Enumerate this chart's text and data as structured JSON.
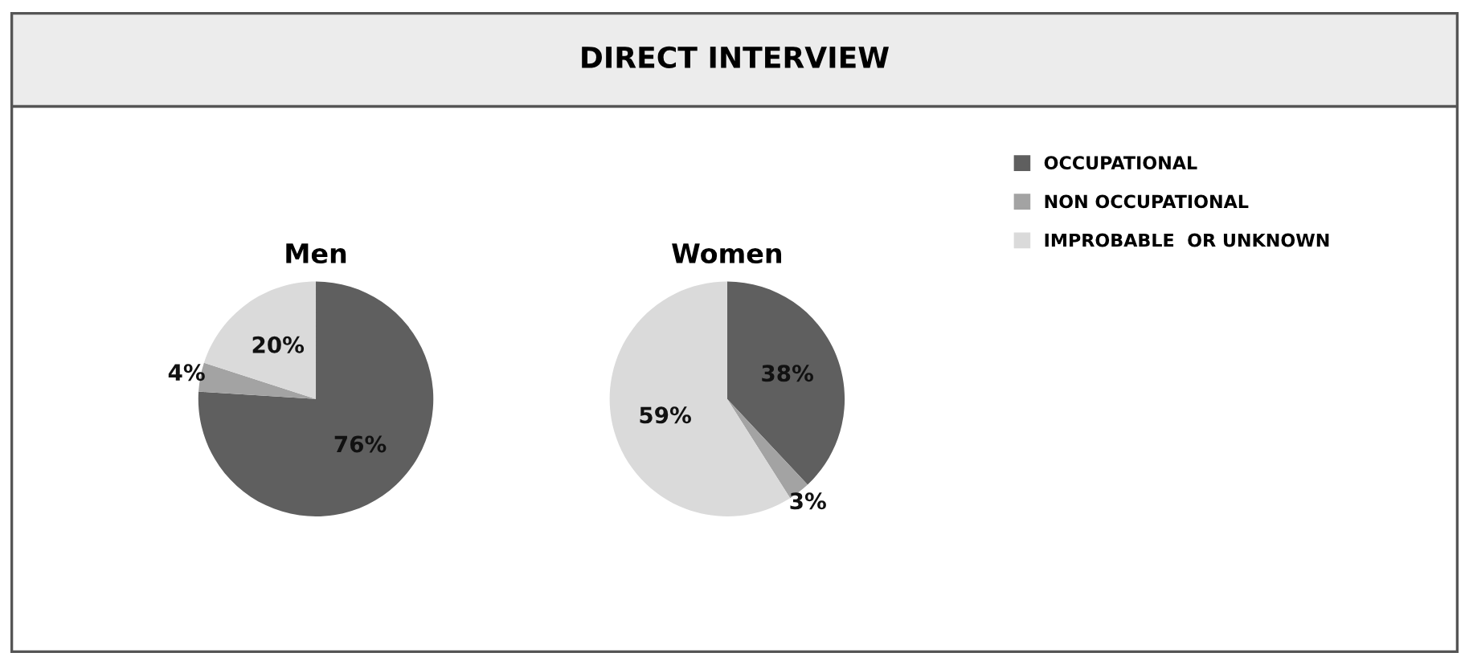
{
  "chart_data": [
    {
      "type": "pie",
      "title": "Men",
      "annotations": [
        "DIRECT INTERVIEW"
      ],
      "categories": [
        "OCCUPATIONAL",
        "NON OCCUPATIONAL",
        "IMPROBABLE  OR UNKNOWN"
      ],
      "values": [
        76,
        4,
        20
      ],
      "value_labels": [
        "76%",
        "4%",
        "20%"
      ],
      "colors": [
        "#5f5f5f",
        "#a3a3a3",
        "#dadada"
      ],
      "legend": "right"
    },
    {
      "type": "pie",
      "title": "Women",
      "categories": [
        null,
        null,
        null
      ],
      "values": [
        38,
        3,
        59
      ],
      "value_labels": [
        "38%",
        "3%",
        "59%"
      ],
      "colors": [
        "#5f5f5f",
        "#a3a3a3",
        "#dadada"
      ]
    }
  ]
}
